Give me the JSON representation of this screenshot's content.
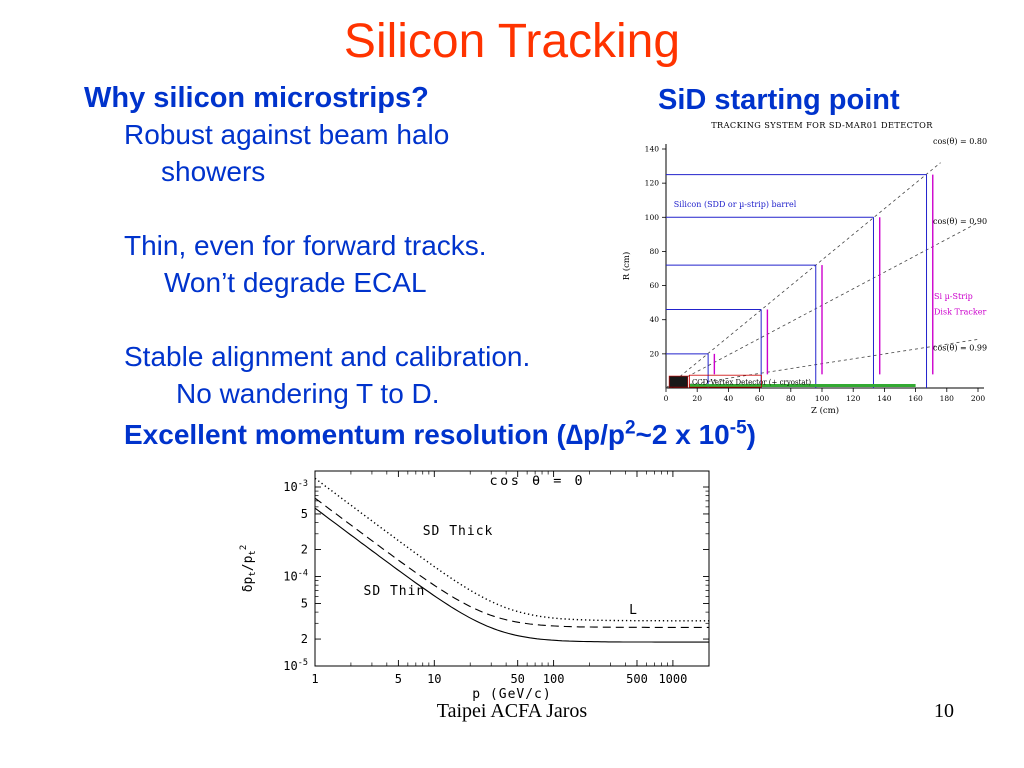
{
  "title": "Silicon Tracking",
  "left": {
    "heading": "Why silicon microstrips?",
    "lines": [
      "Robust against beam halo",
      "showers",
      "Thin, even for forward tracks.",
      "Won’t degrade ECAL",
      "Stable alignment and calibration.",
      "No wandering T to D."
    ]
  },
  "right_heading": "SiD starting point",
  "momentum": {
    "p1": "Excellent momentum resolution (∆p/p",
    "sup1": "2",
    "p2": "~2 x 10",
    "sup2": "-5",
    "p3": ")"
  },
  "footer": {
    "center": "Taipei ACFA Jaros",
    "page": "10"
  },
  "colors": {
    "title_red": "#ff3300",
    "text_blue": "#0033cc",
    "barrel_blue": "#2222cc",
    "disk_magenta": "#cc00cc",
    "strip_green": "#33aa33",
    "vertex_red": "#cc0000"
  },
  "chart_data": [
    {
      "type": "line",
      "title": "TRACKING SYSTEM FOR SD-MAR01 DETECTOR",
      "xlabel": "Z (cm)",
      "ylabel": "R (cm)",
      "xlim": [
        0,
        200
      ],
      "ylim": [
        0,
        140
      ],
      "grid": false,
      "xticks": [
        0,
        20,
        40,
        60,
        80,
        100,
        120,
        140,
        160,
        180,
        200
      ],
      "yticks": [
        20,
        40,
        60,
        80,
        100,
        120,
        140
      ],
      "cos_lines": [
        {
          "label": "cos(θ) = 0.80",
          "slope": 0.75,
          "z_end": 176,
          "label_r": 143
        },
        {
          "label": "cos(θ) = 0.90",
          "slope": 0.4843,
          "z_end": 200,
          "label_r": 96
        },
        {
          "label": "cos(θ) = 0.99",
          "slope": 0.1425,
          "z_end": 200,
          "label_r": 22
        }
      ],
      "barrel": {
        "label": "Silicon (SDD or µ-strip) barrel",
        "layers": [
          {
            "r": 20,
            "z_max": 27
          },
          {
            "r": 46,
            "z_max": 61
          },
          {
            "r": 72,
            "z_max": 96
          },
          {
            "r": 100,
            "z_max": 133
          },
          {
            "r": 125,
            "z_max": 167
          }
        ]
      },
      "disks": {
        "label_line1": "Si µ-Strip",
        "label_line2": "Disk Tracker",
        "positions": [
          {
            "z": 31,
            "r_min": 8,
            "r_max": 20
          },
          {
            "z": 65,
            "r_min": 8,
            "r_max": 46
          },
          {
            "z": 100,
            "r_min": 8,
            "r_max": 72
          },
          {
            "z": 137,
            "r_min": 8,
            "r_max": 100
          },
          {
            "z": 171,
            "r_min": 8,
            "r_max": 125
          }
        ]
      },
      "vertex": {
        "label": "CCD Vertex Detector (+ cryostat)"
      },
      "forward_strip": {
        "z_min": 15,
        "z_max": 160,
        "r": 1.5
      }
    },
    {
      "type": "line",
      "xlabel": "p (GeV/c)",
      "ylabel_parts": {
        "base": "δp",
        "sub1": "t",
        "mid": "/p",
        "sub2": "t",
        "sup": "2"
      },
      "annotation": "cos θ = 0",
      "xlim": [
        1,
        2000
      ],
      "ylim": [
        1e-05,
        0.0015
      ],
      "log_x": true,
      "log_y": true,
      "xticks": [
        {
          "v": 1,
          "label": "1"
        },
        {
          "v": 5,
          "label": "5"
        },
        {
          "v": 10,
          "label": "10"
        },
        {
          "v": 50,
          "label": "50"
        },
        {
          "v": 100,
          "label": "100"
        },
        {
          "v": 500,
          "label": "500"
        },
        {
          "v": 1000,
          "label": "1000"
        }
      ],
      "yticks": [
        {
          "v": 0.001,
          "label": "10^-3"
        },
        {
          "v": 0.0005,
          "label": "5"
        },
        {
          "v": 0.0002,
          "label": "2"
        },
        {
          "v": 0.0001,
          "label": "10^-4"
        },
        {
          "v": 5e-05,
          "label": "5"
        },
        {
          "v": 2e-05,
          "label": "2"
        },
        {
          "v": 1e-05,
          "label": "10^-5"
        }
      ],
      "series": [
        {
          "name": "SD Thick",
          "style": "dotted",
          "a": 3.2e-05,
          "b": 0.00125
        },
        {
          "name": "SD Thin",
          "style": "solid",
          "a": 1.85e-05,
          "b": 0.00058
        },
        {
          "name": "L",
          "style": "dashed",
          "a": 2.7e-05,
          "b": 0.00075
        }
      ],
      "labels": [
        {
          "text": "SD Thick",
          "p": 8,
          "y": 0.00029
        },
        {
          "text": "SD Thin",
          "p": 2.55,
          "y": 6.2e-05
        },
        {
          "text": "L",
          "p": 430,
          "y": 3.8e-05
        }
      ]
    }
  ]
}
